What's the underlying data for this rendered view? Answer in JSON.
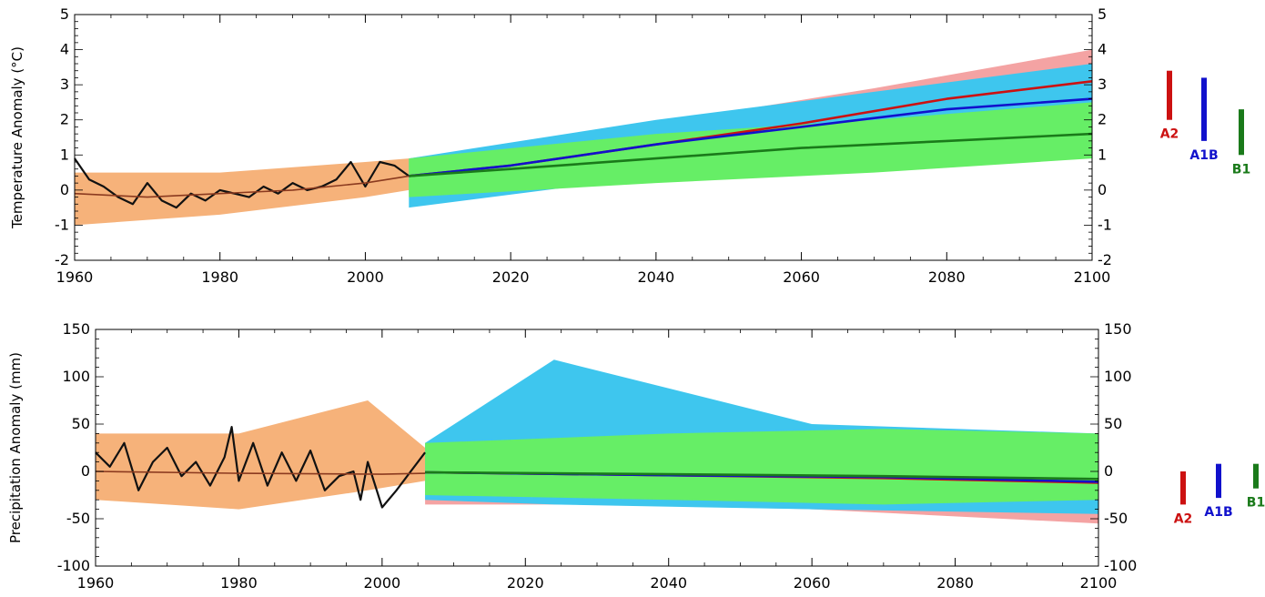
{
  "colors": {
    "observed": "#111111",
    "hist_mean": "#8b3a1f",
    "hist_band": "#f6b27a",
    "A2": "#cc1111",
    "A2_band": "#f4a3a3",
    "A1B": "#1111cc",
    "A1B_band": "#3ec6ee",
    "B1": "#1a7a1a",
    "B1_band": "#66ee66"
  },
  "chart_data": [
    {
      "type": "line",
      "ylabel": "Temperature Anomaly (°C)",
      "xlim": [
        1960,
        2100
      ],
      "ylim": [
        -2,
        5
      ],
      "x_ticks": [
        1960,
        1980,
        2000,
        2020,
        2040,
        2060,
        2080,
        2100
      ],
      "y_ticks": [
        -2,
        -1,
        0,
        1,
        2,
        3,
        4,
        5
      ],
      "grid": false,
      "series": [
        {
          "key": "observed",
          "x": [
            1960,
            1962,
            1964,
            1966,
            1968,
            1970,
            1972,
            1974,
            1976,
            1978,
            1980,
            1982,
            1984,
            1986,
            1988,
            1990,
            1992,
            1994,
            1996,
            1998,
            2000,
            2002,
            2004,
            2006
          ],
          "values": [
            0.9,
            0.3,
            0.1,
            -0.2,
            -0.4,
            0.2,
            -0.3,
            -0.5,
            -0.1,
            -0.3,
            0.0,
            -0.1,
            -0.2,
            0.1,
            -0.1,
            0.2,
            0.0,
            0.1,
            0.3,
            0.8,
            0.1,
            0.8,
            0.7,
            0.4
          ]
        },
        {
          "key": "hist_mean",
          "x": [
            1960,
            1970,
            1980,
            1990,
            2000,
            2006
          ],
          "values": [
            -0.1,
            -0.2,
            -0.1,
            0.0,
            0.2,
            0.4
          ]
        },
        {
          "name": "A2",
          "key": "A2",
          "x": [
            2006,
            2020,
            2040,
            2060,
            2080,
            2100
          ],
          "values": [
            0.4,
            0.7,
            1.3,
            1.9,
            2.6,
            3.1
          ]
        },
        {
          "name": "A1B",
          "key": "A1B",
          "x": [
            2006,
            2020,
            2040,
            2060,
            2080,
            2100
          ],
          "values": [
            0.4,
            0.7,
            1.3,
            1.8,
            2.3,
            2.6
          ]
        },
        {
          "name": "B1",
          "key": "B1",
          "x": [
            2006,
            2020,
            2040,
            2060,
            2080,
            2100
          ],
          "values": [
            0.4,
            0.6,
            0.9,
            1.2,
            1.4,
            1.6
          ]
        }
      ],
      "bands": [
        {
          "key": "hist_band",
          "x": [
            1960,
            1980,
            2000,
            2006
          ],
          "lower": [
            -1.0,
            -0.7,
            -0.2,
            0.0
          ],
          "upper": [
            0.5,
            0.5,
            0.8,
            0.9
          ]
        },
        {
          "key": "A2_band",
          "x": [
            2006,
            2040,
            2070,
            2100
          ],
          "lower": [
            -0.1,
            0.9,
            1.6,
            2.4
          ],
          "upper": [
            0.9,
            1.9,
            2.9,
            4.0
          ]
        },
        {
          "key": "A1B_band",
          "x": [
            2006,
            2040,
            2070,
            2100
          ],
          "lower": [
            -0.5,
            0.4,
            1.2,
            1.8
          ],
          "upper": [
            0.9,
            2.0,
            2.8,
            3.6
          ]
        },
        {
          "key": "B1_band",
          "x": [
            2006,
            2040,
            2070,
            2100
          ],
          "lower": [
            -0.2,
            0.2,
            0.5,
            0.9
          ],
          "upper": [
            0.9,
            1.6,
            2.0,
            2.5
          ]
        }
      ],
      "range_bars": [
        {
          "label": "A2",
          "key": "A2",
          "low": 2.0,
          "high": 3.4
        },
        {
          "label": "A1B",
          "key": "A1B",
          "low": 1.4,
          "high": 3.2
        },
        {
          "label": "B1",
          "key": "B1",
          "low": 1.0,
          "high": 2.3
        }
      ]
    },
    {
      "type": "line",
      "ylabel": "Precipitation Anomaly (mm)",
      "xlim": [
        1960,
        2100
      ],
      "ylim": [
        -100,
        150
      ],
      "x_ticks": [
        1960,
        1980,
        2000,
        2020,
        2040,
        2060,
        2080,
        2100
      ],
      "y_ticks": [
        -100,
        -50,
        0,
        50,
        100,
        150
      ],
      "grid": false,
      "series": [
        {
          "key": "observed",
          "x": [
            1960,
            1962,
            1964,
            1966,
            1968,
            1970,
            1972,
            1974,
            1976,
            1978,
            1979,
            1980,
            1982,
            1984,
            1986,
            1988,
            1990,
            1992,
            1994,
            1996,
            1997,
            1998,
            2000,
            2002,
            2004,
            2006
          ],
          "values": [
            20,
            5,
            30,
            -20,
            10,
            25,
            -5,
            10,
            -15,
            15,
            47,
            -10,
            30,
            -15,
            20,
            -10,
            22,
            -20,
            -5,
            0,
            -30,
            10,
            -38,
            -20,
            0,
            20
          ]
        },
        {
          "key": "hist_mean",
          "x": [
            1960,
            1980,
            2000,
            2006
          ],
          "values": [
            0,
            -2,
            -3,
            -2
          ]
        },
        {
          "name": "A2",
          "key": "A2",
          "x": [
            2006,
            2040,
            2070,
            2100
          ],
          "values": [
            -1,
            -4,
            -7,
            -12
          ]
        },
        {
          "name": "A1B",
          "key": "A1B",
          "x": [
            2006,
            2040,
            2070,
            2100
          ],
          "values": [
            -1,
            -4,
            -6,
            -11
          ]
        },
        {
          "name": "B1",
          "key": "B1",
          "x": [
            2006,
            2040,
            2070,
            2100
          ],
          "values": [
            -1,
            -3,
            -5,
            -8
          ]
        }
      ],
      "bands": [
        {
          "key": "hist_band",
          "x": [
            1960,
            1980,
            1998,
            2006
          ],
          "lower": [
            -30,
            -40,
            -20,
            -10
          ],
          "upper": [
            40,
            40,
            75,
            25
          ]
        },
        {
          "key": "A2_band",
          "x": [
            2006,
            2030,
            2060,
            2100
          ],
          "lower": [
            -35,
            -35,
            -40,
            -55
          ],
          "upper": [
            30,
            80,
            30,
            30
          ]
        },
        {
          "key": "A1B_band",
          "x": [
            2006,
            2024,
            2060,
            2100
          ],
          "lower": [
            -30,
            -35,
            -40,
            -45
          ],
          "upper": [
            30,
            118,
            50,
            40
          ]
        },
        {
          "key": "B1_band",
          "x": [
            2006,
            2040,
            2070,
            2100
          ],
          "lower": [
            -25,
            -30,
            -35,
            -30
          ],
          "upper": [
            30,
            40,
            45,
            40
          ]
        }
      ],
      "range_bars": [
        {
          "label": "A2",
          "key": "A2",
          "low": -35,
          "high": 0
        },
        {
          "label": "A1B",
          "key": "A1B",
          "low": -28,
          "high": 8
        },
        {
          "label": "B1",
          "key": "B1",
          "low": -18,
          "high": 8
        }
      ]
    }
  ]
}
